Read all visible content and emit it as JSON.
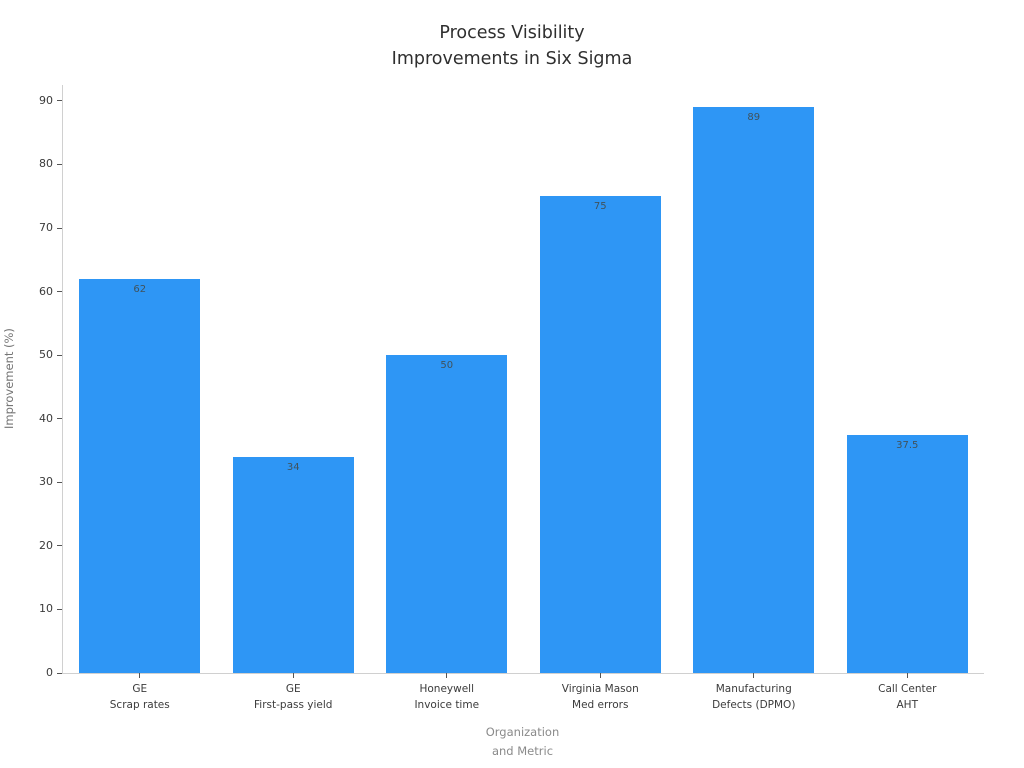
{
  "chart_data": {
    "type": "bar",
    "title_lines": [
      "Process Visibility",
      "Improvements in Six Sigma"
    ],
    "categories": [
      [
        "GE",
        "Scrap rates"
      ],
      [
        "GE",
        "First-pass yield"
      ],
      [
        "Honeywell",
        "Invoice time"
      ],
      [
        "Virginia Mason",
        "Med errors"
      ],
      [
        "Manufacturing",
        "Defects (DPMO)"
      ],
      [
        "Call Center",
        "AHT"
      ]
    ],
    "values": [
      62,
      34,
      50,
      75,
      89,
      37.5
    ],
    "value_labels": [
      "62",
      "34",
      "50",
      "75",
      "89",
      "37.5"
    ],
    "ylabel": "Improvement (%)",
    "xlabel_lines": [
      "Organization",
      "and Metric"
    ],
    "ylim": [
      0,
      92.5
    ],
    "yticks": [
      0,
      10,
      20,
      30,
      40,
      50,
      60,
      70,
      80,
      90
    ],
    "bar_color": "#2e96f5",
    "bar_width_fraction": 0.79,
    "grid": false,
    "legend": false
  }
}
